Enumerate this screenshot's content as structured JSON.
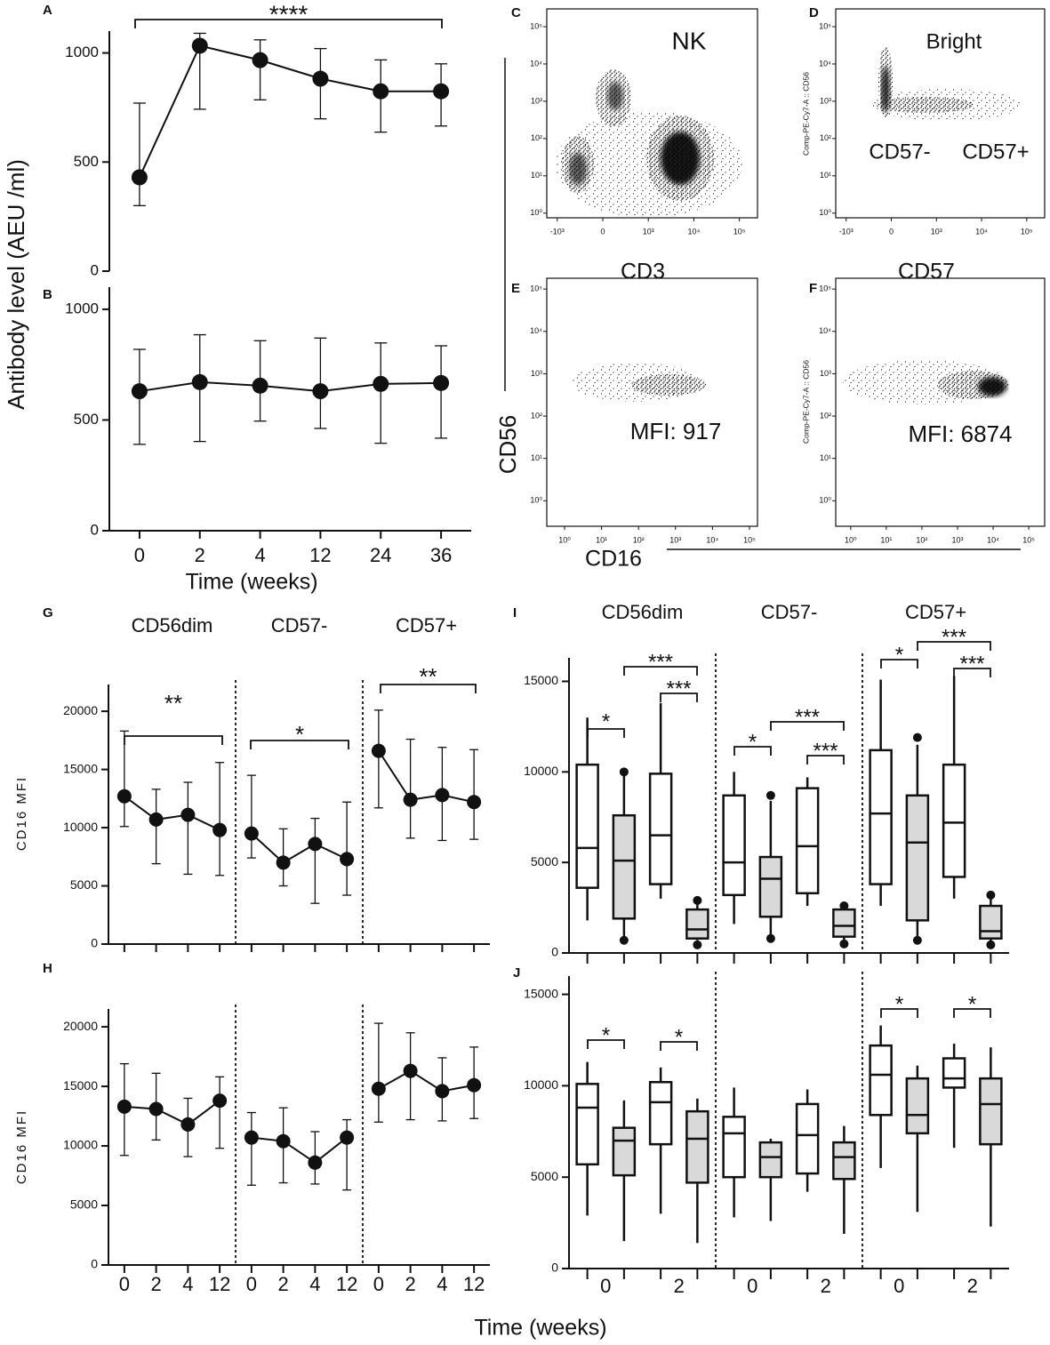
{
  "chart_data": [
    {
      "type": "line",
      "panel_label": "A",
      "ylabel": "Antibody level (AEU /ml)",
      "values": [
        430,
        1033,
        967,
        882,
        824,
        824
      ],
      "lower": [
        300,
        742,
        785,
        698,
        637,
        665
      ],
      "upper": [
        770,
        1090,
        1060,
        1020,
        968,
        950
      ],
      "ylim": [
        0,
        1100
      ],
      "yticks": [
        0,
        500,
        1000
      ],
      "annotations": [
        "****"
      ]
    },
    {
      "type": "line",
      "panel_label": "B",
      "xlabel": "Time (weeks)",
      "categories": [
        "0",
        "2",
        "4",
        "12",
        "24",
        "36"
      ],
      "values": [
        630,
        671,
        655,
        630,
        663,
        667
      ],
      "lower": [
        390,
        403,
        495,
        462,
        395,
        418
      ],
      "upper": [
        819,
        885,
        858,
        870,
        848,
        835
      ],
      "ylim": [
        0,
        1100
      ],
      "yticks": [
        0,
        500,
        1000
      ]
    },
    {
      "type": "flow",
      "panel_label": "C",
      "labels": [
        "NK"
      ],
      "xlabel": "CD3",
      "xscale": "biexponential",
      "yscale": "log",
      "xlim": [
        -1700,
        250000
      ],
      "ylim": [
        0.75,
        300000
      ],
      "xticks": [
        {
          "value": -1000,
          "label": "-10³"
        },
        0,
        {
          "value": 1000,
          "label": "10³"
        },
        {
          "value": 10000,
          "label": "10⁴"
        },
        {
          "value": 100000,
          "label": "10⁵"
        }
      ],
      "yticks": [
        {
          "value": 100000,
          "label": "10⁵"
        },
        {
          "value": 10000,
          "label": "10⁴"
        },
        {
          "value": 1000,
          "label": "10³"
        },
        {
          "value": 100,
          "label": "10²"
        },
        {
          "value": 10,
          "label": "10¹"
        },
        {
          "value": 1,
          "label": "10⁰"
        }
      ]
    },
    {
      "type": "flow",
      "panel_label": "D",
      "labels": [
        "Bright",
        "CD57-",
        "CD57+"
      ],
      "xlabel": "CD57",
      "ylabel": "Comp-PE-Cy7-A :: CD56",
      "xscale": "biexponential",
      "yscale": "log",
      "xlim": [
        -1700,
        250000
      ],
      "ylim": [
        0.75,
        300000
      ],
      "xticks": [
        {
          "value": -1000,
          "label": "-10³"
        },
        0,
        {
          "value": 1000,
          "label": "10³"
        },
        {
          "value": 10000,
          "label": "10⁴"
        },
        {
          "value": 100000,
          "label": "10⁵"
        }
      ],
      "yticks": [
        {
          "value": 100000,
          "label": "10⁵"
        },
        {
          "value": 10000,
          "label": "10⁴"
        },
        {
          "value": 1000,
          "label": "10³"
        },
        {
          "value": 100,
          "label": "10²"
        },
        {
          "value": 10,
          "label": "10¹"
        },
        {
          "value": 1,
          "label": "10⁰"
        }
      ]
    },
    {
      "type": "flow",
      "panel_label": "E",
      "labels": [
        "MFI: 917"
      ],
      "xlabel": "CD16",
      "ylabel": "CD56",
      "xscale": "log",
      "yscale": "log",
      "xlim": [
        0.33,
        165000
      ],
      "ylim": [
        0.25,
        180000
      ],
      "xticks": [
        {
          "value": 1,
          "label": "10⁰"
        },
        {
          "value": 10,
          "label": "10¹"
        },
        {
          "value": 100,
          "label": "10²"
        },
        {
          "value": 1000,
          "label": "10³"
        },
        {
          "value": 10000,
          "label": "10⁴"
        },
        {
          "value": 100000,
          "label": "10⁵"
        }
      ],
      "yticks": [
        {
          "value": 100000,
          "label": "10⁵"
        },
        {
          "value": 10000,
          "label": "10⁴"
        },
        {
          "value": 1000,
          "label": "10³"
        },
        {
          "value": 100,
          "label": "10²"
        },
        {
          "value": 10,
          "label": "10¹"
        },
        {
          "value": 1,
          "label": "10⁰"
        }
      ]
    },
    {
      "type": "flow",
      "panel_label": "F",
      "labels": [
        "MFI: 6874"
      ],
      "ylabel": "Comp-PE-Cy7-A :: CD56",
      "xscale": "log",
      "yscale": "log",
      "xlim": [
        0.38,
        280000
      ],
      "ylim": [
        0.25,
        180000
      ],
      "xticks": [
        {
          "value": 1,
          "label": "10⁰"
        },
        {
          "value": 10,
          "label": "10¹"
        },
        {
          "value": 100,
          "label": "10²"
        },
        {
          "value": 1000,
          "label": "10³"
        },
        {
          "value": 10000,
          "label": "10⁴"
        },
        {
          "value": 100000,
          "label": "10⁵"
        }
      ],
      "yticks": [
        {
          "value": 100000,
          "label": "10⁵"
        },
        {
          "value": 10000,
          "label": "10⁴"
        },
        {
          "value": 1000,
          "label": "10³"
        },
        {
          "value": 100,
          "label": "10²"
        },
        {
          "value": 10,
          "label": "10¹"
        },
        {
          "value": 1,
          "label": "10⁰"
        }
      ]
    },
    {
      "type": "line",
      "panel_label": "G",
      "ylabel": "CD16 MFI",
      "series": [
        {
          "name": "CD56dim",
          "values": [
            12700,
            10700,
            11100,
            9800
          ],
          "lower": [
            10100,
            6900,
            6000,
            5900
          ],
          "upper": [
            18300,
            13300,
            13900,
            15600
          ]
        },
        {
          "name": "CD57-",
          "values": [
            9500,
            7000,
            8600,
            7300
          ],
          "lower": [
            7400,
            5000,
            3500,
            4200
          ],
          "upper": [
            14500,
            9900,
            10800,
            12200
          ]
        },
        {
          "name": "CD57+",
          "values": [
            16600,
            12400,
            12800,
            12200
          ],
          "lower": [
            11700,
            9100,
            8900,
            9000
          ],
          "upper": [
            20100,
            17600,
            16900,
            16700
          ]
        }
      ],
      "ylim": [
        0,
        22300
      ],
      "yticks": [
        0,
        5000,
        10000,
        15000,
        20000
      ],
      "annotations": [
        "**",
        "*",
        "**"
      ]
    },
    {
      "type": "line",
      "panel_label": "H",
      "ylabel": "CD16 MFI",
      "xlabel": "Time (weeks)",
      "categories": [
        "0",
        "2",
        "4",
        "12"
      ],
      "series": [
        {
          "values": [
            13300,
            13100,
            11800,
            13800
          ],
          "lower": [
            9200,
            10500,
            9100,
            9800
          ],
          "upper": [
            16900,
            16100,
            14000,
            15800
          ]
        },
        {
          "values": [
            10700,
            10400,
            8600,
            10700
          ],
          "lower": [
            6700,
            6900,
            6800,
            6300
          ],
          "upper": [
            12800,
            13200,
            11200,
            12200
          ]
        },
        {
          "values": [
            14800,
            16300,
            14600,
            15100
          ],
          "lower": [
            12000,
            12200,
            12100,
            12300
          ],
          "upper": [
            20300,
            19500,
            17400,
            18300
          ]
        }
      ],
      "ylim": [
        0,
        21500
      ],
      "yticks": [
        0,
        5000,
        10000,
        15000,
        20000
      ]
    },
    {
      "type": "box",
      "panel_label": "I",
      "groups": [
        "CD56dim",
        "CD57-",
        "CD57+"
      ],
      "series": [
        {
          "color": "#ffffff",
          "boxes": [
            [
              {
                "min": 1800,
                "q1": 3600,
                "median": 5800,
                "q3": 10400,
                "max": 13000
              },
              {
                "min": 3000,
                "q1": 3800,
                "median": 6500,
                "q3": 9900,
                "max": 13800
              }
            ],
            [
              {
                "min": 1600,
                "q1": 3200,
                "median": 5000,
                "q3": 8700,
                "max": 10000
              },
              {
                "min": 2600,
                "q1": 3300,
                "median": 5900,
                "q3": 9100,
                "max": 9700
              }
            ],
            [
              {
                "min": 2600,
                "q1": 3800,
                "median": 7700,
                "q3": 11200,
                "max": 15100
              },
              {
                "min": 3000,
                "q1": 4200,
                "median": 7200,
                "q3": 10400,
                "max": 15300
              }
            ]
          ]
        },
        {
          "color": "#d9d9d9",
          "boxes": [
            [
              {
                "min": 900,
                "q1": 1900,
                "median": 5100,
                "q3": 7600,
                "max": 9900,
                "outliers": [
                  700,
                  10000
                ]
              },
              {
                "min": 700,
                "q1": 800,
                "median": 1300,
                "q3": 2400,
                "max": 2800,
                "outliers": [
                  450,
                  2900
                ]
              }
            ],
            [
              {
                "min": 900,
                "q1": 2000,
                "median": 4100,
                "q3": 5300,
                "max": 8400,
                "outliers": [
                  800,
                  8700
                ]
              },
              {
                "min": 600,
                "q1": 900,
                "median": 1500,
                "q3": 2400,
                "max": 2500,
                "outliers": [
                  500,
                  2600
                ]
              }
            ],
            [
              {
                "min": 800,
                "q1": 1800,
                "median": 6100,
                "q3": 8700,
                "max": 11500,
                "outliers": [
                  700,
                  11900
                ]
              },
              {
                "min": 500,
                "q1": 800,
                "median": 1200,
                "q3": 2600,
                "max": 3000,
                "outliers": [
                  450,
                  3200
                ]
              }
            ]
          ]
        }
      ],
      "ylim": [
        0,
        16300
      ],
      "yticks": [
        0,
        5000,
        10000,
        15000
      ],
      "annotations": [
        "*",
        "***",
        "***",
        "*",
        "***",
        "***",
        "*",
        "***",
        "***"
      ]
    },
    {
      "type": "box",
      "panel_label": "J",
      "categories": [
        "0",
        "2"
      ],
      "series": [
        {
          "color": "#ffffff",
          "boxes": [
            [
              {
                "min": 2900,
                "q1": 5700,
                "median": 8800,
                "q3": 10100,
                "max": 11300
              },
              {
                "min": 3000,
                "q1": 6800,
                "median": 9100,
                "q3": 10200,
                "max": 11000
              }
            ],
            [
              {
                "min": 2800,
                "q1": 5000,
                "median": 7400,
                "q3": 8300,
                "max": 9900
              },
              {
                "min": 4200,
                "q1": 5200,
                "median": 7300,
                "q3": 9000,
                "max": 9800
              }
            ],
            [
              {
                "min": 5500,
                "q1": 8400,
                "median": 10600,
                "q3": 12200,
                "max": 13300
              },
              {
                "min": 6600,
                "q1": 9900,
                "median": 10400,
                "q3": 11500,
                "max": 12300
              }
            ]
          ]
        },
        {
          "color": "#d9d9d9",
          "boxes": [
            [
              {
                "min": 1500,
                "q1": 5100,
                "median": 7000,
                "q3": 7700,
                "max": 9200
              },
              {
                "min": 1400,
                "q1": 4700,
                "median": 7100,
                "q3": 8600,
                "max": 9300
              }
            ],
            [
              {
                "min": 2600,
                "q1": 5000,
                "median": 6100,
                "q3": 6900,
                "max": 7100
              },
              {
                "min": 1900,
                "q1": 4900,
                "median": 6100,
                "q3": 6900,
                "max": 7800
              }
            ],
            [
              {
                "min": 3100,
                "q1": 7400,
                "median": 8400,
                "q3": 10400,
                "max": 11100
              },
              {
                "min": 2300,
                "q1": 6800,
                "median": 9000,
                "q3": 10400,
                "max": 12100
              }
            ]
          ]
        }
      ],
      "ylim": [
        0,
        16000
      ],
      "yticks": [
        0,
        5000,
        10000,
        15000
      ],
      "annotations": [
        "*",
        "*",
        "*",
        "*"
      ]
    }
  ]
}
